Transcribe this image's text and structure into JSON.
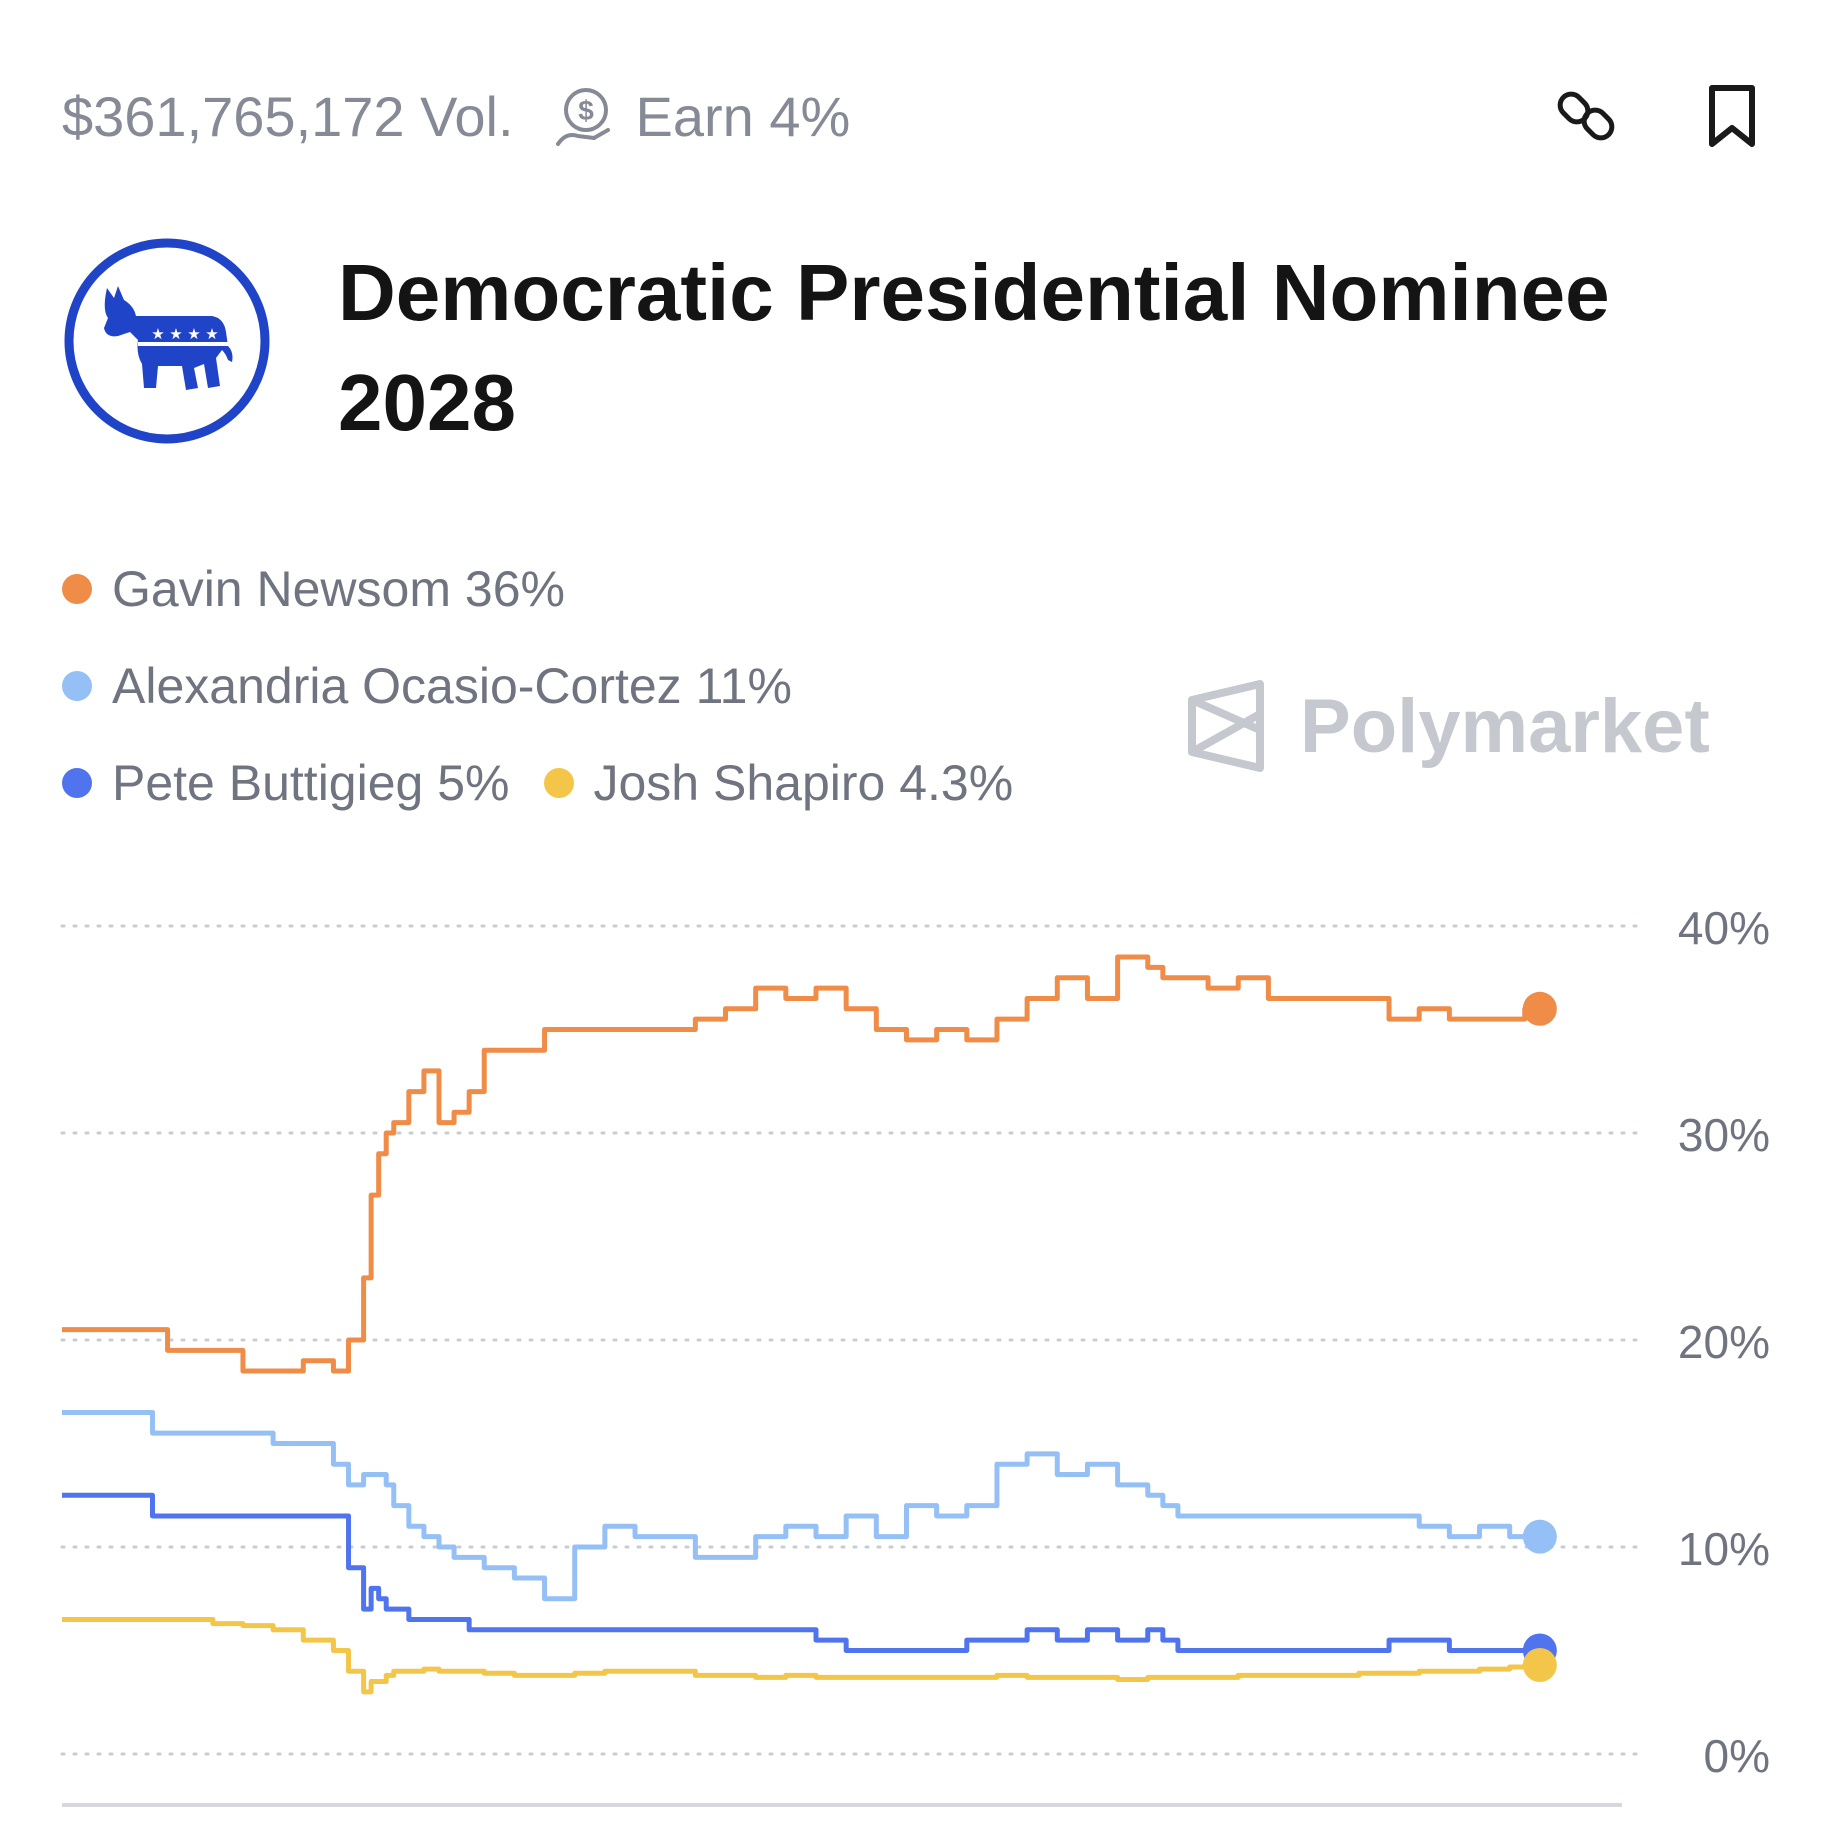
{
  "header": {
    "volume": "$361,765,172 Vol.",
    "earn": "Earn 4%",
    "link_icon": "link-icon",
    "bookmark_icon": "bookmark-icon",
    "earn_icon": "coin-reward-icon"
  },
  "market": {
    "title": "Democratic Presidential Nominee 2028",
    "logo_icon": "democratic-donkey-icon"
  },
  "watermark": {
    "text": "Polymarket"
  },
  "chart_data": {
    "type": "line",
    "ylim": [
      0,
      40
    ],
    "yticks": [
      "40%",
      "30%",
      "20%",
      "10%",
      "0%"
    ],
    "grid": true,
    "legend_placement": "top-left",
    "x": [
      0,
      3,
      6,
      7,
      10,
      12,
      14,
      16,
      18,
      19,
      20,
      20.5,
      21,
      21.5,
      22,
      23,
      24,
      25,
      26,
      27,
      28,
      30,
      32,
      34,
      36,
      38,
      40,
      42,
      44,
      46,
      48,
      50,
      52,
      54,
      56,
      58,
      60,
      62,
      64,
      66,
      68,
      70,
      72,
      73,
      74,
      76,
      78,
      80,
      82,
      84,
      86,
      88,
      90,
      92,
      94,
      96,
      97,
      98
    ],
    "series": [
      {
        "name": "Gavin Newsom",
        "label": "Gavin Newsom 36%",
        "color": "#ef8c48",
        "values": [
          20.5,
          20.5,
          20.5,
          19.5,
          19.5,
          18.5,
          18.5,
          19,
          18.5,
          20,
          23,
          27,
          29,
          30,
          30.5,
          32,
          33,
          30.5,
          31,
          32,
          34,
          34,
          35,
          35,
          35,
          35,
          35,
          35.5,
          36,
          37,
          36.5,
          37,
          36,
          35,
          34.5,
          35,
          34.5,
          35.5,
          36.5,
          37.5,
          36.5,
          38.5,
          38,
          37.5,
          37.5,
          37,
          37.5,
          36.5,
          36.5,
          36.5,
          36.5,
          35.5,
          36,
          35.5,
          35.5,
          35.5,
          36,
          36
        ]
      },
      {
        "name": "Alexandria Ocasio-Cortez",
        "label": "Alexandria Ocasio-Cortez 11%",
        "color": "#94c0f5",
        "values": [
          16.5,
          16.5,
          15.5,
          15.5,
          15.5,
          15.5,
          15,
          15,
          14,
          13,
          13.5,
          13.5,
          13.5,
          13,
          12,
          11,
          10.5,
          10,
          9.5,
          9.5,
          9,
          8.5,
          7.5,
          10,
          11,
          10.5,
          10.5,
          9.5,
          9.5,
          10.5,
          11,
          10.5,
          11.5,
          10.5,
          12,
          11.5,
          12,
          14,
          14.5,
          13.5,
          14,
          13,
          12.5,
          12,
          11.5,
          11.5,
          11.5,
          11.5,
          11.5,
          11.5,
          11.5,
          11.5,
          11,
          10.5,
          11,
          10.5,
          10.5,
          10.5
        ]
      },
      {
        "name": "Pete Buttigieg",
        "label": "Pete Buttigieg 5%",
        "color": "#4f74ee",
        "values": [
          12.5,
          12.5,
          11.5,
          11.5,
          11.5,
          11.5,
          11.5,
          11.5,
          11.5,
          9,
          7,
          8,
          7.5,
          7,
          7,
          6.5,
          6.5,
          6.5,
          6.5,
          6,
          6,
          6,
          6,
          6,
          6,
          6,
          6,
          6,
          6,
          6,
          6,
          5.5,
          5,
          5,
          5,
          5,
          5.5,
          5.5,
          6,
          5.5,
          6,
          5.5,
          6,
          5.5,
          5,
          5,
          5,
          5,
          5,
          5,
          5,
          5.5,
          5.5,
          5,
          5,
          5,
          5,
          5
        ]
      },
      {
        "name": "Josh Shapiro",
        "label": "Josh Shapiro 4.3%",
        "color": "#f3c64a",
        "values": [
          6.5,
          6.5,
          6.5,
          6.5,
          6.3,
          6.2,
          6,
          5.5,
          5,
          4,
          3,
          3.5,
          3.5,
          3.8,
          4,
          4,
          4.1,
          4,
          4,
          4,
          3.9,
          3.8,
          3.8,
          3.9,
          4,
          4,
          4,
          3.8,
          3.8,
          3.7,
          3.8,
          3.7,
          3.7,
          3.7,
          3.7,
          3.7,
          3.7,
          3.8,
          3.7,
          3.7,
          3.7,
          3.6,
          3.7,
          3.7,
          3.7,
          3.7,
          3.8,
          3.8,
          3.8,
          3.8,
          3.9,
          3.9,
          4,
          4,
          4.1,
          4.2,
          4.3,
          4.3
        ]
      }
    ]
  }
}
